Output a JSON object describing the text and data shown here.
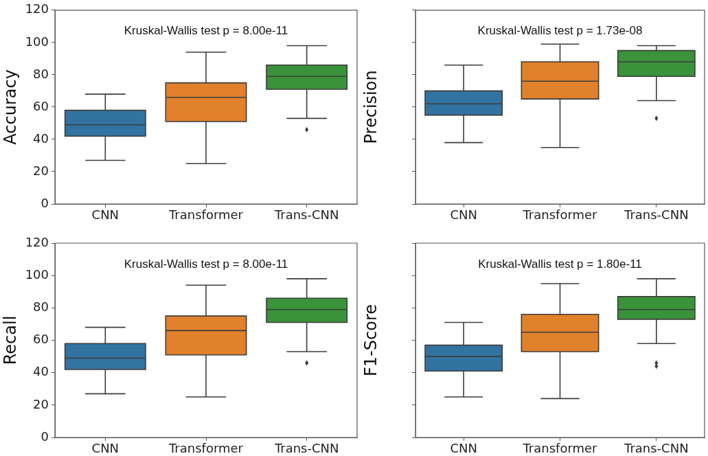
{
  "chart_data": [
    {
      "type": "box",
      "categories": [
        "CNN",
        "Transformer",
        "Trans-CNN"
      ],
      "colors": [
        "#3274a1",
        "#e1812c",
        "#3a923a"
      ],
      "ylabel": "Accuracy",
      "ylim": [
        0,
        120
      ],
      "yticks": [
        0,
        20,
        40,
        60,
        80,
        100,
        120
      ],
      "annotations": [
        "Kruskal-Wallis test p = 8.00e-11"
      ],
      "boxes": [
        {
          "low": 27,
          "q1": 42,
          "median": 49,
          "q3": 58,
          "high": 68
        },
        {
          "low": 25,
          "q1": 51,
          "median": 66,
          "q3": 75,
          "high": 94
        },
        {
          "low": 53,
          "q1": 71,
          "median": 79,
          "q3": 86,
          "high": 98,
          "outliers": [
            46
          ]
        }
      ]
    },
    {
      "type": "box",
      "categories": [
        "CNN",
        "Transformer",
        "Trans-CNN"
      ],
      "colors": [
        "#3274a1",
        "#e1812c",
        "#3a923a"
      ],
      "ylabel": "Precision",
      "ylim": [
        0,
        120
      ],
      "yticks": [
        0,
        20,
        40,
        60,
        80,
        100,
        120
      ],
      "tick_labels": "x",
      "annotations": [
        "Kruskal-Wallis test p = 1.73e-08"
      ],
      "boxes": [
        {
          "low": 38,
          "q1": 55,
          "median": 62,
          "q3": 70,
          "high": 86
        },
        {
          "low": 35,
          "q1": 65,
          "median": 76,
          "q3": 88,
          "high": 99
        },
        {
          "low": 64,
          "q1": 79,
          "median": 88,
          "q3": 95,
          "high": 98,
          "outliers": [
            53
          ]
        }
      ]
    },
    {
      "type": "box",
      "categories": [
        "CNN",
        "Transformer",
        "Trans-CNN"
      ],
      "colors": [
        "#3274a1",
        "#e1812c",
        "#3a923a"
      ],
      "ylabel": "Recall",
      "ylim": [
        0,
        120
      ],
      "yticks": [
        0,
        20,
        40,
        60,
        80,
        100,
        120
      ],
      "annotations": [
        "Kruskal-Wallis test p = 8.00e-11"
      ],
      "boxes": [
        {
          "low": 27,
          "q1": 42,
          "median": 49,
          "q3": 58,
          "high": 68
        },
        {
          "low": 25,
          "q1": 51,
          "median": 66,
          "q3": 75,
          "high": 94
        },
        {
          "low": 53,
          "q1": 71,
          "median": 79,
          "q3": 86,
          "high": 98,
          "outliers": [
            46
          ]
        }
      ]
    },
    {
      "type": "box",
      "categories": [
        "CNN",
        "Transformer",
        "Trans-CNN"
      ],
      "colors": [
        "#3274a1",
        "#e1812c",
        "#3a923a"
      ],
      "ylabel": "F1-Score",
      "ylim": [
        0,
        120
      ],
      "yticks": [
        0,
        20,
        40,
        60,
        80,
        100,
        120
      ],
      "tick_labels": "x",
      "annotations": [
        "Kruskal-Wallis test p = 1.80e-11"
      ],
      "boxes": [
        {
          "low": 25,
          "q1": 41,
          "median": 50,
          "q3": 57,
          "high": 71
        },
        {
          "low": 24,
          "q1": 53,
          "median": 65,
          "q3": 76,
          "high": 95
        },
        {
          "low": 58,
          "q1": 73,
          "median": 79,
          "q3": 87,
          "high": 98,
          "outliers": [
            46,
            44
          ]
        }
      ]
    }
  ]
}
